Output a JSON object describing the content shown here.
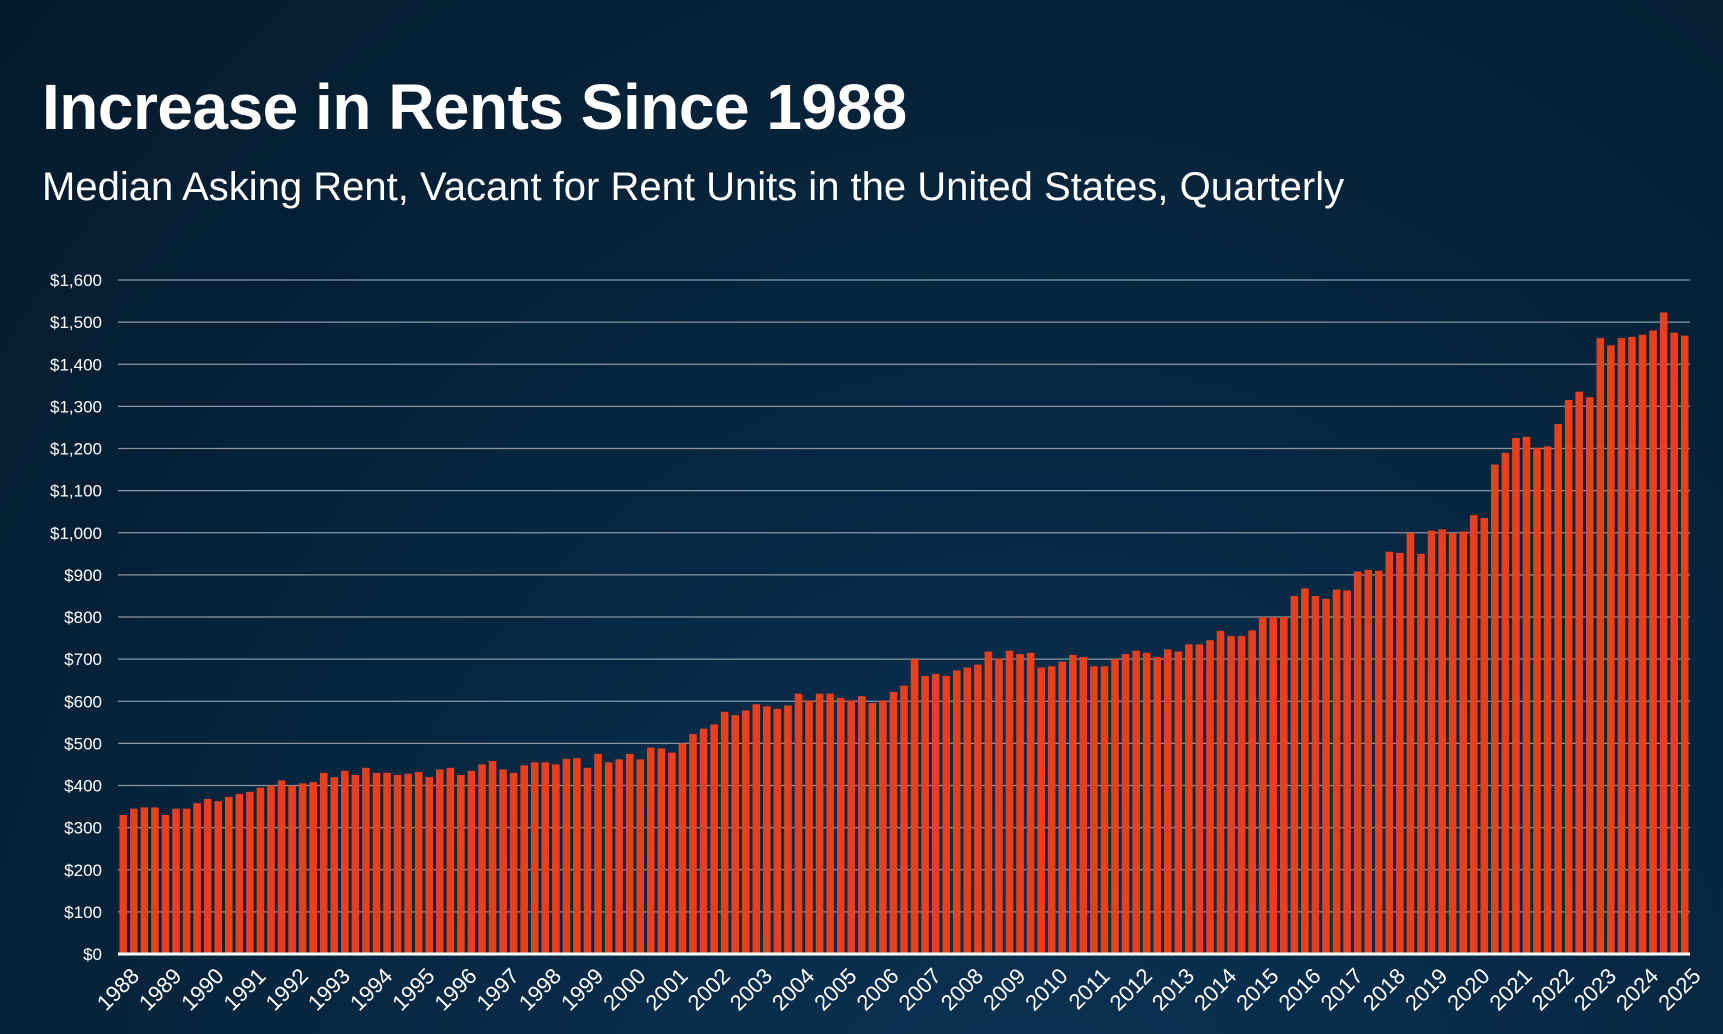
{
  "header": {
    "title": "Increase in Rents Since 1988",
    "subtitle": "Median Asking Rent, Vacant for Rent Units in the United States, Quarterly"
  },
  "colors": {
    "bar": "#e8401d",
    "gridline": "#8a97a3",
    "axis": "#ffffff"
  },
  "chart_data": {
    "type": "bar",
    "title": "Increase in Rents Since 1988",
    "subtitle": "Median Asking Rent, Vacant for Rent Units in the United States, Quarterly",
    "xlabel": "",
    "ylabel": "",
    "ylim": [
      0,
      1600
    ],
    "grid": true,
    "legend": "none",
    "start_year": 1988,
    "y_ticks": [
      "$0",
      "$100",
      "$200",
      "$300",
      "$400",
      "$500",
      "$600",
      "$700",
      "$800",
      "$900",
      "$1,000",
      "$1,100",
      "$1,200",
      "$1,300",
      "$1,400",
      "$1,500",
      "$1,600"
    ],
    "x_tick_labels": [
      "1988",
      "1989",
      "1990",
      "1991",
      "1992",
      "1993",
      "1994",
      "1995",
      "1996",
      "1997",
      "1998",
      "1999",
      "2000",
      "2001",
      "2002",
      "2003",
      "2004",
      "2005",
      "2006",
      "2007",
      "2008",
      "2009",
      "2010",
      "2011",
      "2012",
      "2013",
      "2014",
      "2015",
      "2016",
      "2017",
      "2018",
      "2019",
      "2020",
      "2021",
      "2022",
      "2023",
      "2024",
      "2025"
    ],
    "values": [
      330,
      345,
      348,
      348,
      330,
      345,
      345,
      358,
      368,
      363,
      373,
      380,
      385,
      395,
      400,
      412,
      400,
      405,
      408,
      430,
      420,
      435,
      425,
      442,
      430,
      430,
      425,
      428,
      432,
      420,
      438,
      442,
      425,
      435,
      450,
      458,
      438,
      430,
      448,
      455,
      455,
      450,
      463,
      465,
      442,
      475,
      455,
      462,
      475,
      462,
      490,
      488,
      478,
      500,
      522,
      535,
      545,
      575,
      567,
      578,
      593,
      588,
      582,
      590,
      618,
      602,
      618,
      618,
      608,
      602,
      612,
      596,
      602,
      622,
      637,
      700,
      660,
      665,
      660,
      673,
      680,
      687,
      718,
      702,
      720,
      712,
      715,
      680,
      683,
      694,
      710,
      705,
      683,
      683,
      700,
      712,
      720,
      715,
      705,
      723,
      718,
      735,
      735,
      745,
      767,
      755,
      755,
      768,
      800,
      800,
      800,
      850,
      868,
      850,
      843,
      865,
      863,
      908,
      912,
      910,
      955,
      952,
      1000,
      950,
      1005,
      1008,
      1000,
      1003,
      1042,
      1035,
      1162,
      1190,
      1225,
      1228,
      1202,
      1205,
      1258,
      1315,
      1335,
      1322,
      1462,
      1445,
      1462,
      1465,
      1470,
      1480,
      1523,
      1475,
      1468
    ]
  }
}
